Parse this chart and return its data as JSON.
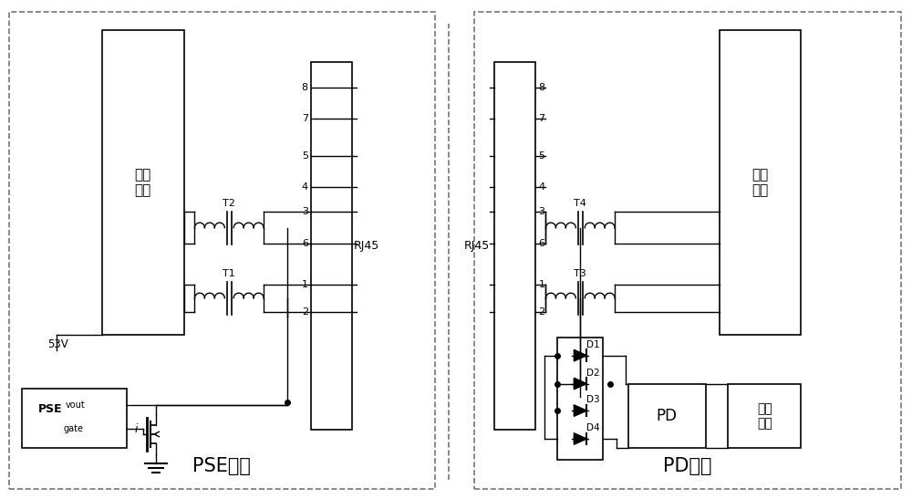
{
  "bg_color": "#ffffff",
  "lc": "#000000",
  "dash_color": "#777777",
  "title_pse": "PSE设备",
  "title_pd": "PD设备",
  "jieko_pse": "接口\n模块",
  "jieko_pd": "接口\n模块",
  "rj45": "RJ45",
  "voltage": "53V",
  "pse_text": "PSE",
  "vout_text": "vout",
  "gate_text": "gate",
  "i_text": "i",
  "pd_text": "PD",
  "load_text": "系统\n负载",
  "pin_labels": [
    "8",
    "7",
    "5",
    "4",
    "3",
    "6",
    "1",
    "2"
  ],
  "t_labels": [
    "T2",
    "T1",
    "T4",
    "T3"
  ],
  "d_labels": [
    "D1",
    "D2",
    "D3",
    "D4"
  ],
  "figw": 10.0,
  "figh": 5.47,
  "dpi": 100
}
